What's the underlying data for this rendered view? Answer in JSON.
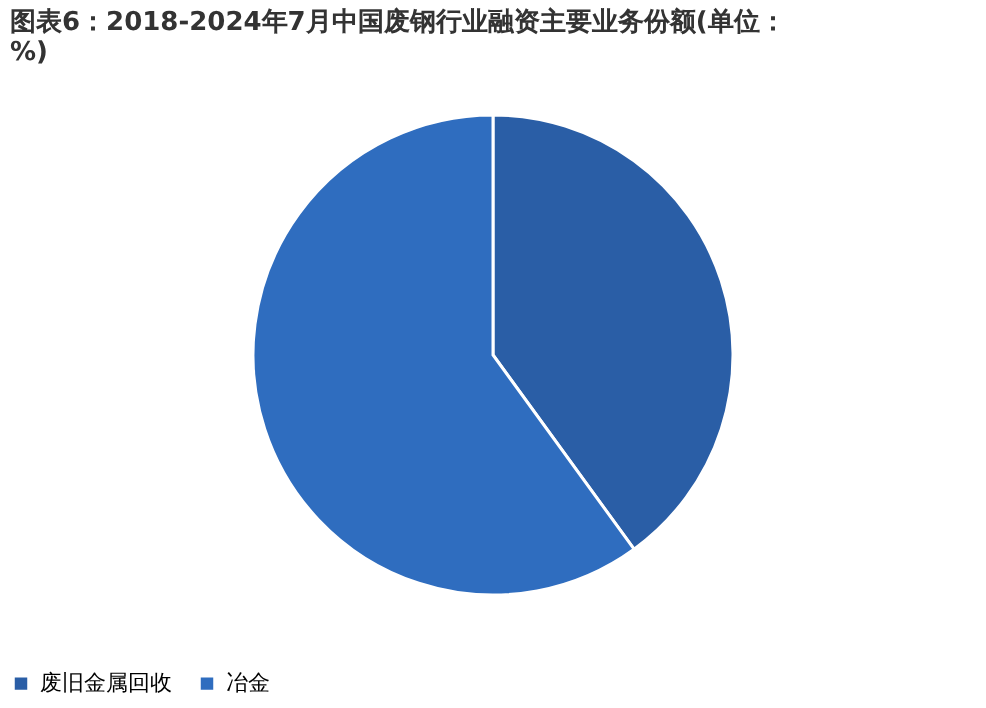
{
  "chart_data": {
    "type": "pie",
    "title": "图表6：2018-2024年7月中国废钢行业融资主要业务份额(单位：%)",
    "categories": [
      "废旧金属回收",
      "冶金"
    ],
    "values": [
      40,
      60
    ],
    "colors": [
      "#2a5ea6",
      "#2f6dbf"
    ],
    "legend": "bottom"
  }
}
